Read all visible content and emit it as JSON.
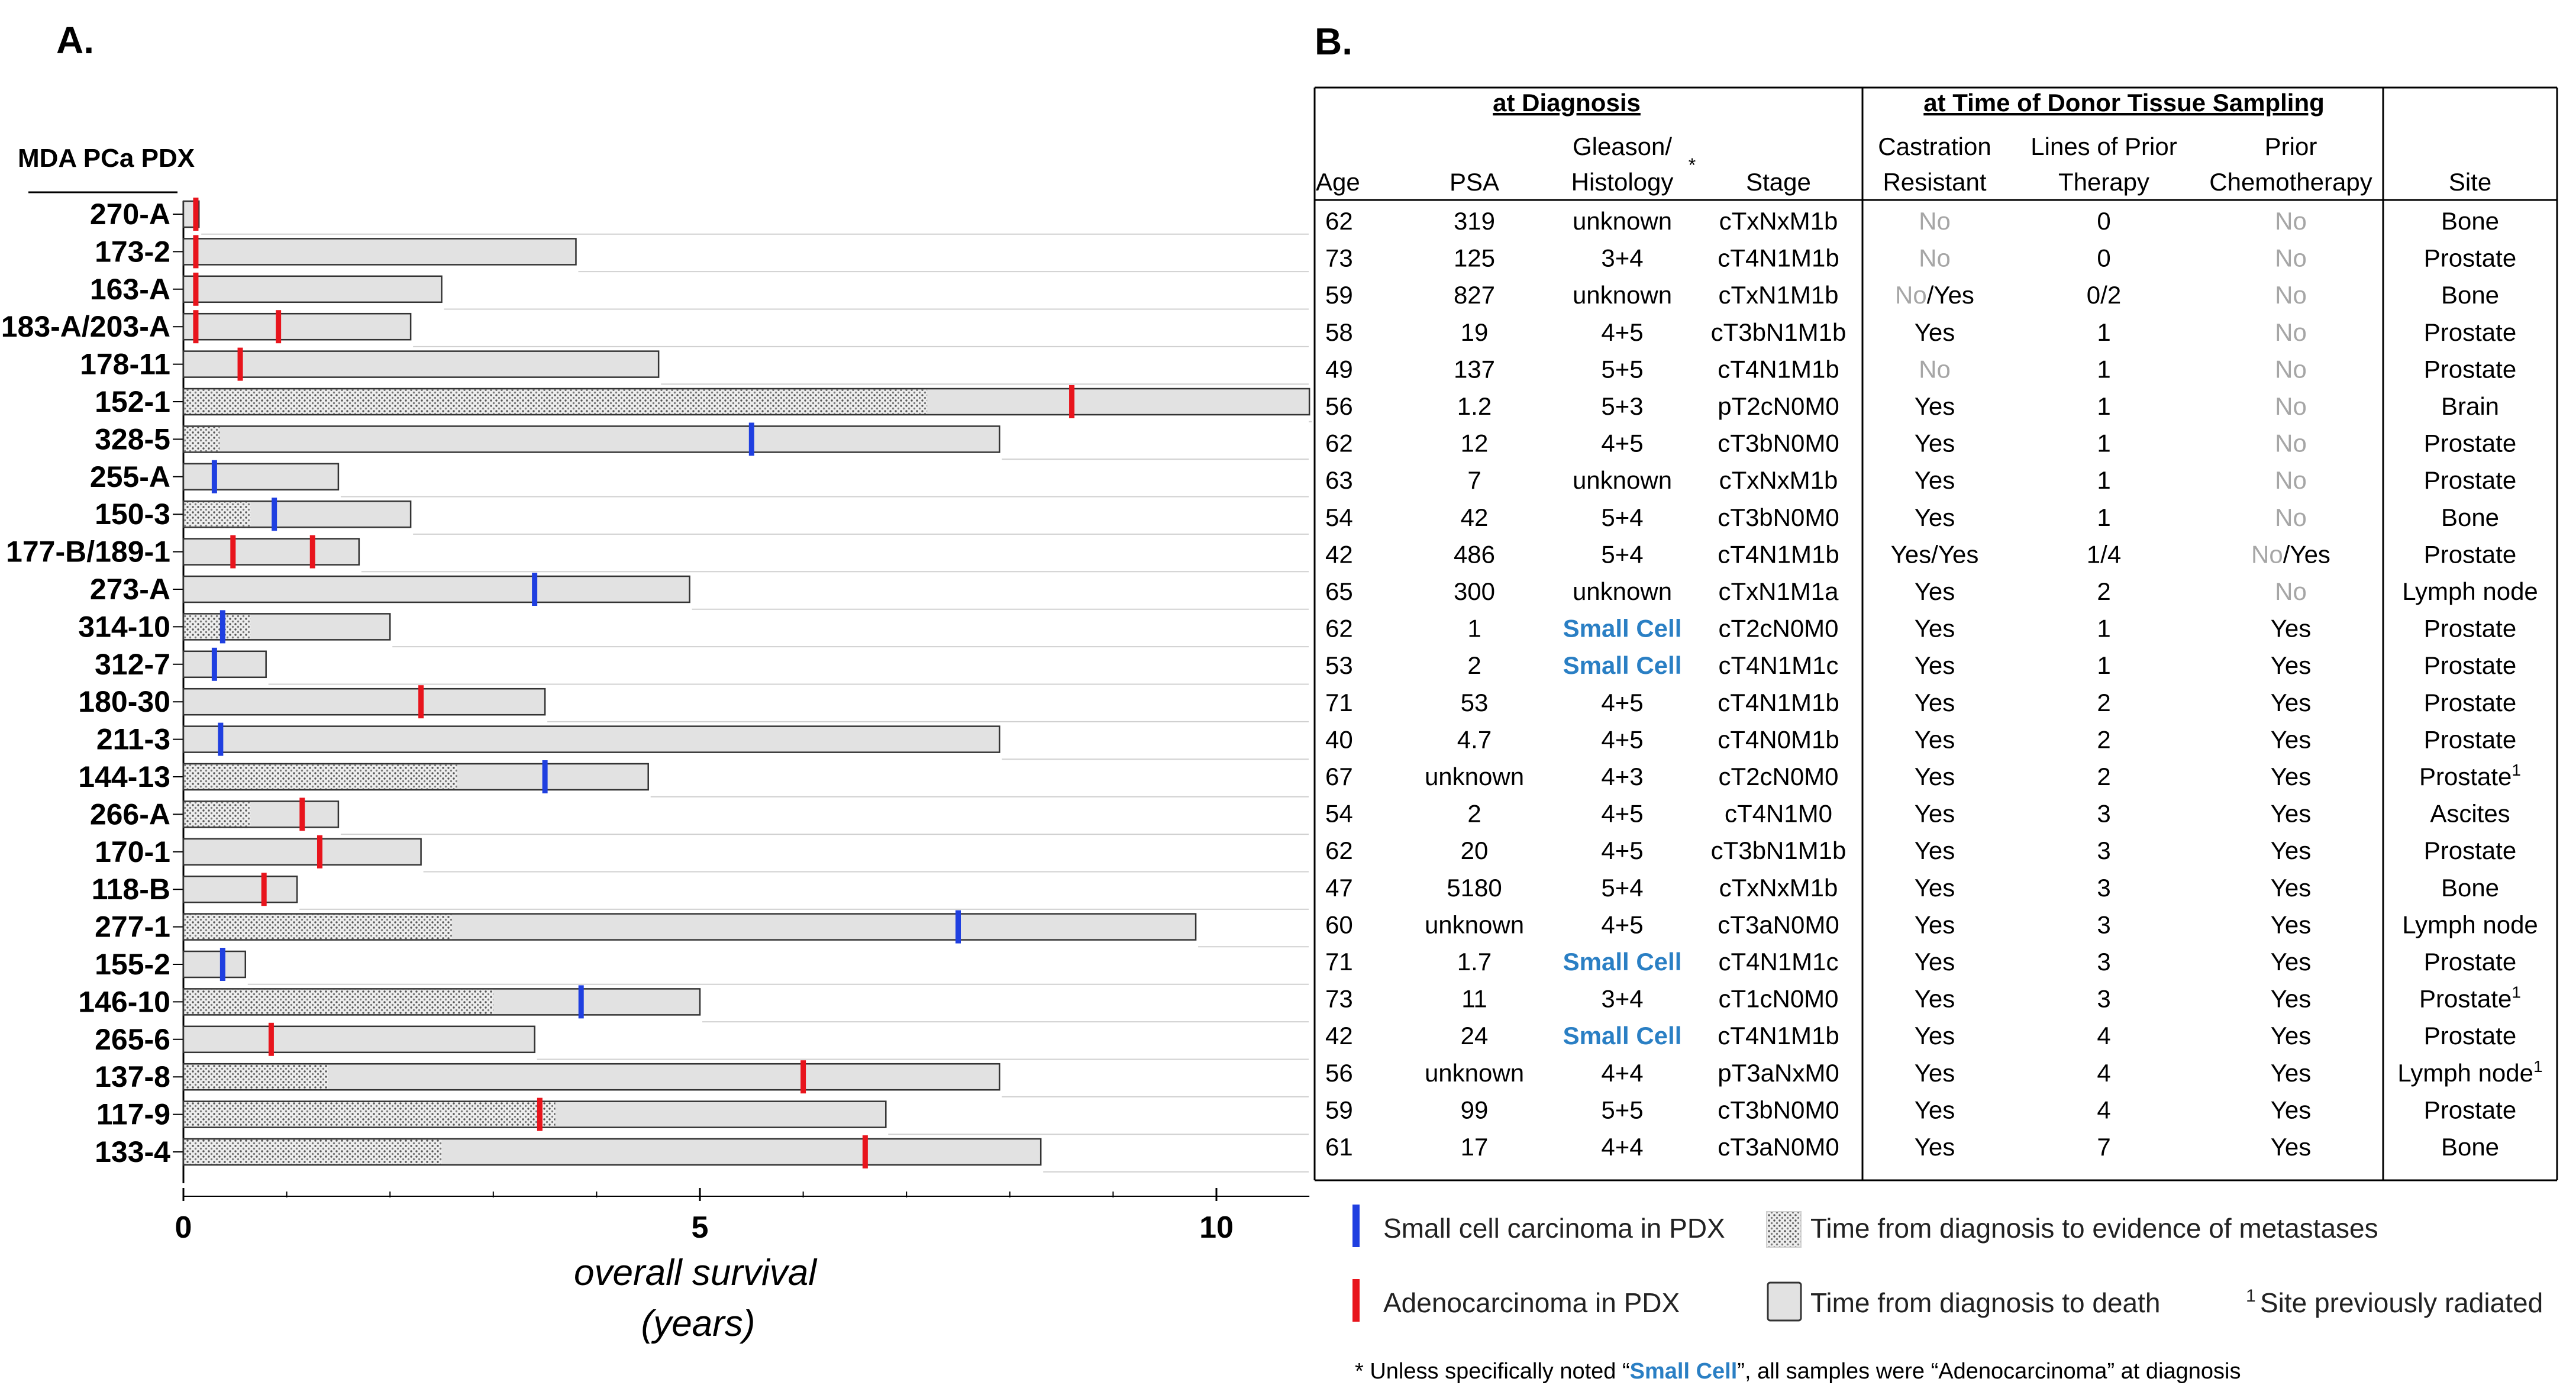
{
  "panel_a_label": "A.",
  "panel_b_label": "B.",
  "colors": {
    "small_cell": "#1f3fe0",
    "adeno": "#e8141c",
    "bar_fill": "#e2e2e2",
    "bar_stroke": "#333333",
    "small_cell_text": "#2a7fc4",
    "no_text": "#a6a6a6"
  },
  "chart_data": {
    "type": "bar",
    "orientation": "horizontal",
    "title": "",
    "ylabel": "MDA PCa PDX",
    "xlabel_line1": "overall survival",
    "xlabel_line2": "(years)",
    "xlim": [
      0,
      10.9
    ],
    "xticks": [
      "0",
      "5",
      "10"
    ],
    "xtick_values": [
      0,
      5,
      10
    ],
    "series": [
      {
        "name": "Time from diagnosis to death",
        "values": [
          0.15,
          3.8,
          2.5,
          2.2,
          4.6,
          10.9,
          7.9,
          1.5,
          2.2,
          1.7,
          4.9,
          2.0,
          0.8,
          3.5,
          7.9,
          4.5,
          1.5,
          2.3,
          1.1,
          9.8,
          0.6,
          5.0,
          3.4,
          7.9,
          6.8,
          8.3
        ]
      },
      {
        "name": "Time from diagnosis to evidence of metastases",
        "values": [
          0,
          0,
          0,
          0,
          0,
          7.2,
          0.35,
          0,
          0.65,
          0,
          0,
          0.65,
          0,
          0,
          0,
          2.65,
          0.65,
          0,
          0,
          2.6,
          0,
          3.0,
          0,
          1.4,
          3.6,
          2.5
        ]
      }
    ],
    "categories": [
      "270-A",
      "173-2",
      "163-A",
      "183-A/203-A",
      "178-11",
      "152-1",
      "328-5",
      "255-A",
      "150-3",
      "177-B/189-1",
      "273-A",
      "314-10",
      "312-7",
      "180-30",
      "211-3",
      "144-13",
      "266-A",
      "170-1",
      "118-B",
      "277-1",
      "155-2",
      "146-10",
      "265-6",
      "137-8",
      "117-9",
      "133-4"
    ],
    "sampling_marks": [
      {
        "row": 0,
        "x": 0.12,
        "type": "adeno"
      },
      {
        "row": 1,
        "x": 0.12,
        "type": "adeno"
      },
      {
        "row": 2,
        "x": 0.12,
        "type": "adeno"
      },
      {
        "row": 3,
        "x": 0.12,
        "type": "adeno"
      },
      {
        "row": 3,
        "x": 0.92,
        "type": "adeno"
      },
      {
        "row": 4,
        "x": 0.55,
        "type": "adeno"
      },
      {
        "row": 5,
        "x": 8.6,
        "type": "adeno"
      },
      {
        "row": 6,
        "x": 5.5,
        "type": "small_cell"
      },
      {
        "row": 7,
        "x": 0.3,
        "type": "small_cell"
      },
      {
        "row": 8,
        "x": 0.88,
        "type": "small_cell"
      },
      {
        "row": 9,
        "x": 0.48,
        "type": "adeno"
      },
      {
        "row": 9,
        "x": 1.25,
        "type": "adeno"
      },
      {
        "row": 10,
        "x": 3.4,
        "type": "small_cell"
      },
      {
        "row": 11,
        "x": 0.38,
        "type": "small_cell"
      },
      {
        "row": 12,
        "x": 0.3,
        "type": "small_cell"
      },
      {
        "row": 13,
        "x": 2.3,
        "type": "adeno"
      },
      {
        "row": 14,
        "x": 0.36,
        "type": "small_cell"
      },
      {
        "row": 15,
        "x": 3.5,
        "type": "small_cell"
      },
      {
        "row": 16,
        "x": 1.15,
        "type": "adeno"
      },
      {
        "row": 17,
        "x": 1.32,
        "type": "adeno"
      },
      {
        "row": 18,
        "x": 0.78,
        "type": "adeno"
      },
      {
        "row": 19,
        "x": 7.5,
        "type": "small_cell"
      },
      {
        "row": 20,
        "x": 0.38,
        "type": "small_cell"
      },
      {
        "row": 21,
        "x": 3.85,
        "type": "small_cell"
      },
      {
        "row": 22,
        "x": 0.85,
        "type": "adeno"
      },
      {
        "row": 23,
        "x": 6.0,
        "type": "adeno"
      },
      {
        "row": 24,
        "x": 3.45,
        "type": "adeno"
      },
      {
        "row": 25,
        "x": 6.6,
        "type": "adeno"
      }
    ]
  },
  "table": {
    "group_diagnosis": "at Diagnosis",
    "group_sampling": "at Time of Donor Tissue Sampling",
    "headers": {
      "age": "Age",
      "psa": "PSA",
      "gleason_1": "Gleason/",
      "gleason_2": "Histology",
      "gleason_star": "*",
      "stage": "Stage",
      "cr_1": "Castration",
      "cr_2": "Resistant",
      "lines_1": "Lines of Prior",
      "lines_2": "Therapy",
      "chemo_1": "Prior",
      "chemo_2": "Chemotherapy",
      "site": "Site"
    },
    "rows": [
      {
        "age": "62",
        "psa": "319",
        "gleason": "unknown",
        "stage": "cTxNxM1b",
        "cr": [
          {
            "t": "No",
            "c": "no"
          }
        ],
        "lines": "0",
        "chemo": [
          {
            "t": "No",
            "c": "no"
          }
        ],
        "site": "Bone",
        "sup": ""
      },
      {
        "age": "73",
        "psa": "125",
        "gleason": "3+4",
        "stage": "cT4N1M1b",
        "cr": [
          {
            "t": "No",
            "c": "no"
          }
        ],
        "lines": "0",
        "chemo": [
          {
            "t": "No",
            "c": "no"
          }
        ],
        "site": "Prostate",
        "sup": ""
      },
      {
        "age": "59",
        "psa": "827",
        "gleason": "unknown",
        "stage": "cTxN1M1b",
        "cr": [
          {
            "t": "No",
            "c": "no"
          },
          {
            "t": "/Yes",
            "c": ""
          }
        ],
        "lines": "0/2",
        "chemo": [
          {
            "t": "No",
            "c": "no"
          }
        ],
        "site": "Bone",
        "sup": ""
      },
      {
        "age": "58",
        "psa": "19",
        "gleason": "4+5",
        "stage": "cT3bN1M1b",
        "cr": [
          {
            "t": "Yes",
            "c": ""
          }
        ],
        "lines": "1",
        "chemo": [
          {
            "t": "No",
            "c": "no"
          }
        ],
        "site": "Prostate",
        "sup": ""
      },
      {
        "age": "49",
        "psa": "137",
        "gleason": "5+5",
        "stage": "cT4N1M1b",
        "cr": [
          {
            "t": "No",
            "c": "no"
          }
        ],
        "lines": "1",
        "chemo": [
          {
            "t": "No",
            "c": "no"
          }
        ],
        "site": "Prostate",
        "sup": ""
      },
      {
        "age": "56",
        "psa": "1.2",
        "gleason": "5+3",
        "stage": "pT2cN0M0",
        "cr": [
          {
            "t": "Yes",
            "c": ""
          }
        ],
        "lines": "1",
        "chemo": [
          {
            "t": "No",
            "c": "no"
          }
        ],
        "site": "Brain",
        "sup": ""
      },
      {
        "age": "62",
        "psa": "12",
        "gleason": "4+5",
        "stage": "cT3bN0M0",
        "cr": [
          {
            "t": "Yes",
            "c": ""
          }
        ],
        "lines": "1",
        "chemo": [
          {
            "t": "No",
            "c": "no"
          }
        ],
        "site": "Prostate",
        "sup": ""
      },
      {
        "age": "63",
        "psa": "7",
        "gleason": "unknown",
        "stage": "cTxNxM1b",
        "cr": [
          {
            "t": "Yes",
            "c": ""
          }
        ],
        "lines": "1",
        "chemo": [
          {
            "t": "No",
            "c": "no"
          }
        ],
        "site": "Prostate",
        "sup": ""
      },
      {
        "age": "54",
        "psa": "42",
        "gleason": "5+4",
        "stage": "cT3bN0M0",
        "cr": [
          {
            "t": "Yes",
            "c": ""
          }
        ],
        "lines": "1",
        "chemo": [
          {
            "t": "No",
            "c": "no"
          }
        ],
        "site": "Bone",
        "sup": ""
      },
      {
        "age": "42",
        "psa": "486",
        "gleason": "5+4",
        "stage": "cT4N1M1b",
        "cr": [
          {
            "t": "Yes/Yes",
            "c": ""
          }
        ],
        "lines": "1/4",
        "chemo": [
          {
            "t": "No",
            "c": "no"
          },
          {
            "t": "/Yes",
            "c": ""
          }
        ],
        "site": "Prostate",
        "sup": ""
      },
      {
        "age": "65",
        "psa": "300",
        "gleason": "unknown",
        "stage": "cTxN1M1a",
        "cr": [
          {
            "t": "Yes",
            "c": ""
          }
        ],
        "lines": "2",
        "chemo": [
          {
            "t": "No",
            "c": "no"
          }
        ],
        "site": "Lymph node",
        "sup": ""
      },
      {
        "age": "62",
        "psa": "1",
        "gleason": "Small Cell",
        "stage": "cT2cN0M0",
        "cr": [
          {
            "t": "Yes",
            "c": ""
          }
        ],
        "lines": "1",
        "chemo": [
          {
            "t": "Yes",
            "c": ""
          }
        ],
        "site": "Prostate",
        "sup": ""
      },
      {
        "age": "53",
        "psa": "2",
        "gleason": "Small Cell",
        "stage": "cT4N1M1c",
        "cr": [
          {
            "t": "Yes",
            "c": ""
          }
        ],
        "lines": "1",
        "chemo": [
          {
            "t": "Yes",
            "c": ""
          }
        ],
        "site": "Prostate",
        "sup": ""
      },
      {
        "age": "71",
        "psa": "53",
        "gleason": "4+5",
        "stage": "cT4N1M1b",
        "cr": [
          {
            "t": "Yes",
            "c": ""
          }
        ],
        "lines": "2",
        "chemo": [
          {
            "t": "Yes",
            "c": ""
          }
        ],
        "site": "Prostate",
        "sup": ""
      },
      {
        "age": "40",
        "psa": "4.7",
        "gleason": "4+5",
        "stage": "cT4N0M1b",
        "cr": [
          {
            "t": "Yes",
            "c": ""
          }
        ],
        "lines": "2",
        "chemo": [
          {
            "t": "Yes",
            "c": ""
          }
        ],
        "site": "Prostate",
        "sup": ""
      },
      {
        "age": "67",
        "psa": "unknown",
        "gleason": "4+3",
        "stage": "cT2cN0M0",
        "cr": [
          {
            "t": "Yes",
            "c": ""
          }
        ],
        "lines": "2",
        "chemo": [
          {
            "t": "Yes",
            "c": ""
          }
        ],
        "site": "Prostate",
        "sup": "1"
      },
      {
        "age": "54",
        "psa": "2",
        "gleason": "4+5",
        "stage": "cT4N1M0",
        "cr": [
          {
            "t": "Yes",
            "c": ""
          }
        ],
        "lines": "3",
        "chemo": [
          {
            "t": "Yes",
            "c": ""
          }
        ],
        "site": "Ascites",
        "sup": ""
      },
      {
        "age": "62",
        "psa": "20",
        "gleason": "4+5",
        "stage": "cT3bN1M1b",
        "cr": [
          {
            "t": "Yes",
            "c": ""
          }
        ],
        "lines": "3",
        "chemo": [
          {
            "t": "Yes",
            "c": ""
          }
        ],
        "site": "Prostate",
        "sup": ""
      },
      {
        "age": "47",
        "psa": "5180",
        "gleason": "5+4",
        "stage": "cTxNxM1b",
        "cr": [
          {
            "t": "Yes",
            "c": ""
          }
        ],
        "lines": "3",
        "chemo": [
          {
            "t": "Yes",
            "c": ""
          }
        ],
        "site": "Bone",
        "sup": ""
      },
      {
        "age": "60",
        "psa": "unknown",
        "gleason": "4+5",
        "stage": "cT3aN0M0",
        "cr": [
          {
            "t": "Yes",
            "c": ""
          }
        ],
        "lines": "3",
        "chemo": [
          {
            "t": "Yes",
            "c": ""
          }
        ],
        "site": "Lymph node",
        "sup": ""
      },
      {
        "age": "71",
        "psa": "1.7",
        "gleason": "Small Cell",
        "stage": "cT4N1M1c",
        "cr": [
          {
            "t": "Yes",
            "c": ""
          }
        ],
        "lines": "3",
        "chemo": [
          {
            "t": "Yes",
            "c": ""
          }
        ],
        "site": "Prostate",
        "sup": ""
      },
      {
        "age": "73",
        "psa": "11",
        "gleason": "3+4",
        "stage": "cT1cN0M0",
        "cr": [
          {
            "t": "Yes",
            "c": ""
          }
        ],
        "lines": "3",
        "chemo": [
          {
            "t": "Yes",
            "c": ""
          }
        ],
        "site": "Prostate",
        "sup": "1"
      },
      {
        "age": "42",
        "psa": "24",
        "gleason": "Small Cell",
        "stage": "cT4N1M1b",
        "cr": [
          {
            "t": "Yes",
            "c": ""
          }
        ],
        "lines": "4",
        "chemo": [
          {
            "t": "Yes",
            "c": ""
          }
        ],
        "site": "Prostate",
        "sup": ""
      },
      {
        "age": "56",
        "psa": "unknown",
        "gleason": "4+4",
        "stage": "pT3aNxM0",
        "cr": [
          {
            "t": "Yes",
            "c": ""
          }
        ],
        "lines": "4",
        "chemo": [
          {
            "t": "Yes",
            "c": ""
          }
        ],
        "site": "Lymph node",
        "sup": "1"
      },
      {
        "age": "59",
        "psa": "99",
        "gleason": "5+5",
        "stage": "cT3bN0M0",
        "cr": [
          {
            "t": "Yes",
            "c": ""
          }
        ],
        "lines": "4",
        "chemo": [
          {
            "t": "Yes",
            "c": ""
          }
        ],
        "site": "Prostate",
        "sup": ""
      },
      {
        "age": "61",
        "psa": "17",
        "gleason": "4+4",
        "stage": "cT3aN0M0",
        "cr": [
          {
            "t": "Yes",
            "c": ""
          }
        ],
        "lines": "7",
        "chemo": [
          {
            "t": "Yes",
            "c": ""
          }
        ],
        "site": "Bone",
        "sup": ""
      }
    ]
  },
  "legend": {
    "small_cell": "Small cell carcinoma in PDX",
    "adeno": "Adenocarcinoma in PDX",
    "metastases": "Time from diagnosis to evidence of metastases",
    "death": "Time from diagnosis to death",
    "radiated_sup": "1",
    "radiated": "Site previously radiated"
  },
  "footnote": {
    "star": "*",
    "part1": " Unless specifically noted “",
    "small_cell": "Small Cell",
    "part2": "”, all samples were “Adenocarcinoma” at diagnosis"
  }
}
